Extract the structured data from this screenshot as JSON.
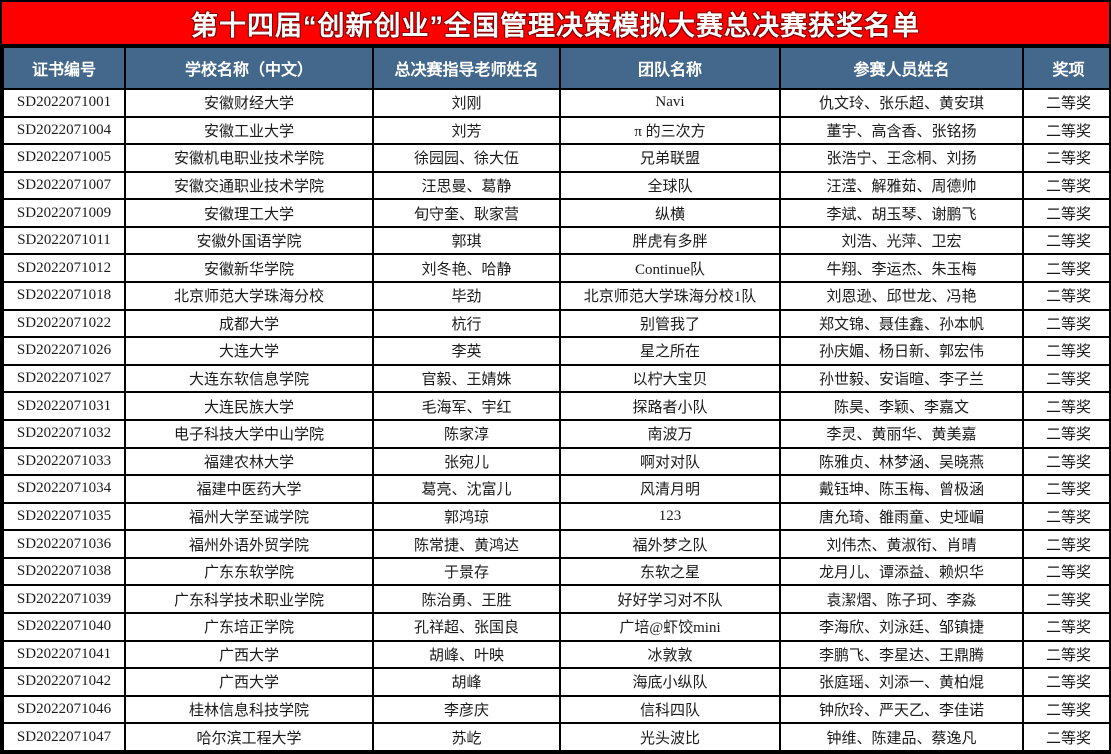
{
  "title": "第十四届“创新创业”全国管理决策模拟大赛总决赛获奖名单",
  "colors": {
    "title_bg": "#fe0000",
    "title_text": "#ffffff",
    "header_bg": "#44678c",
    "header_text": "#ffffff",
    "border": "#000000"
  },
  "table": {
    "columns": [
      "证书编号",
      "学校名称（中文）",
      "总决赛指导老师姓名",
      "团队名称",
      "参赛人员姓名",
      "奖项"
    ],
    "rows": [
      {
        "cert": "SD2022071001",
        "school": "安徽财经大学",
        "teacher": "刘刚",
        "team": "Navi",
        "members": "仇文玲、张乐超、黄安琪",
        "award": "二等奖"
      },
      {
        "cert": "SD2022071004",
        "school": "安徽工业大学",
        "teacher": "刘芳",
        "team": "π 的三次方",
        "members": "董宇、高含香、张铭扬",
        "award": "二等奖"
      },
      {
        "cert": "SD2022071005",
        "school": "安徽机电职业技术学院",
        "teacher": "徐园园、徐大伍",
        "team": "兄弟联盟",
        "members": "张浩宁、王念桐、刘扬",
        "award": "二等奖"
      },
      {
        "cert": "SD2022071007",
        "school": "安徽交通职业技术学院",
        "teacher": "汪思曼、葛静",
        "team": "全球队",
        "members": "汪滢、解雅茹、周德帅",
        "award": "二等奖"
      },
      {
        "cert": "SD2022071009",
        "school": "安徽理工大学",
        "teacher": "旬守奎、耿家营",
        "team": "纵横",
        "members": "李斌、胡玉琴、谢鹏飞",
        "award": "二等奖"
      },
      {
        "cert": "SD2022071011",
        "school": "安徽外国语学院",
        "teacher": "郭琪",
        "team": "胖虎有多胖",
        "members": "刘浩、光萍、卫宏",
        "award": "二等奖"
      },
      {
        "cert": "SD2022071012",
        "school": "安徽新华学院",
        "teacher": "刘冬艳、哈静",
        "team": "Continue队",
        "members": "牛翔、李运杰、朱玉梅",
        "award": "二等奖"
      },
      {
        "cert": "SD2022071018",
        "school": "北京师范大学珠海分校",
        "teacher": "毕劲",
        "team": "北京师范大学珠海分校1队",
        "members": "刘恩逊、邱世龙、冯艳",
        "award": "二等奖"
      },
      {
        "cert": "SD2022071022",
        "school": "成都大学",
        "teacher": "杭行",
        "team": "别管我了",
        "members": "郑文锦、聂佳鑫、孙本帆",
        "award": "二等奖"
      },
      {
        "cert": "SD2022071026",
        "school": "大连大学",
        "teacher": "李英",
        "team": "星之所在",
        "members": "孙庆媚、杨日新、郭宏伟",
        "award": "二等奖"
      },
      {
        "cert": "SD2022071027",
        "school": "大连东软信息学院",
        "teacher": "官毅、王婧姝",
        "team": "以柠大宝贝",
        "members": "孙世毅、安诣暄、李子兰",
        "award": "二等奖"
      },
      {
        "cert": "SD2022071031",
        "school": "大连民族大学",
        "teacher": "毛海军、宇红",
        "team": "探路者小队",
        "members": "陈昊、李颖、李嘉文",
        "award": "二等奖"
      },
      {
        "cert": "SD2022071032",
        "school": "电子科技大学中山学院",
        "teacher": "陈家淳",
        "team": "南波万",
        "members": "李灵、黄丽华、黄美嘉",
        "award": "二等奖"
      },
      {
        "cert": "SD2022071033",
        "school": "福建农林大学",
        "teacher": "张宛儿",
        "team": "啊对对队",
        "members": "陈雅贞、林梦涵、吴晓燕",
        "award": "二等奖"
      },
      {
        "cert": "SD2022071034",
        "school": "福建中医药大学",
        "teacher": "葛亮、沈富儿",
        "team": "风清月明",
        "members": "戴钰坤、陈玉梅、曾极涵",
        "award": "二等奖"
      },
      {
        "cert": "SD2022071035",
        "school": "福州大学至诚学院",
        "teacher": "郭鸿琼",
        "team": "123",
        "members": "唐允琦、雒雨童、史垭嵋",
        "award": "二等奖"
      },
      {
        "cert": "SD2022071036",
        "school": "福州外语外贸学院",
        "teacher": "陈常捷、黄鸿达",
        "team": "福外梦之队",
        "members": "刘伟杰、黄淑衔、肖晴",
        "award": "二等奖"
      },
      {
        "cert": "SD2022071038",
        "school": "广东东软学院",
        "teacher": "于景存",
        "team": "东软之星",
        "members": "龙月儿、谭添益、赖炽华",
        "award": "二等奖"
      },
      {
        "cert": "SD2022071039",
        "school": "广东科学技术职业学院",
        "teacher": "陈治勇、王胜",
        "team": "好好学习对不队",
        "members": "袁潔熠、陈子珂、李淼",
        "award": "二等奖"
      },
      {
        "cert": "SD2022071040",
        "school": "广东培正学院",
        "teacher": "孔祥超、张国良",
        "team": "广培@虾饺mini",
        "members": "李海欣、刘泳廷、邹镇捷",
        "award": "二等奖"
      },
      {
        "cert": "SD2022071041",
        "school": "广西大学",
        "teacher": "胡峰、叶映",
        "team": "冰敦敦",
        "members": "李鹏飞、李星达、王鼎腾",
        "award": "二等奖"
      },
      {
        "cert": "SD2022071042",
        "school": "广西大学",
        "teacher": "胡峰",
        "team": "海底小纵队",
        "members": "张庭瑶、刘添一、黄柏焜",
        "award": "二等奖"
      },
      {
        "cert": "SD2022071046",
        "school": "桂林信息科技学院",
        "teacher": "李彦庆",
        "team": "信科四队",
        "members": "钟欣玲、严天乙、李佳诺",
        "award": "二等奖"
      },
      {
        "cert": "SD2022071047",
        "school": "哈尔滨工程大学",
        "teacher": "苏屹",
        "team": "光头波比",
        "members": "钟维、陈建品、蔡逸凡",
        "award": "二等奖"
      }
    ]
  }
}
